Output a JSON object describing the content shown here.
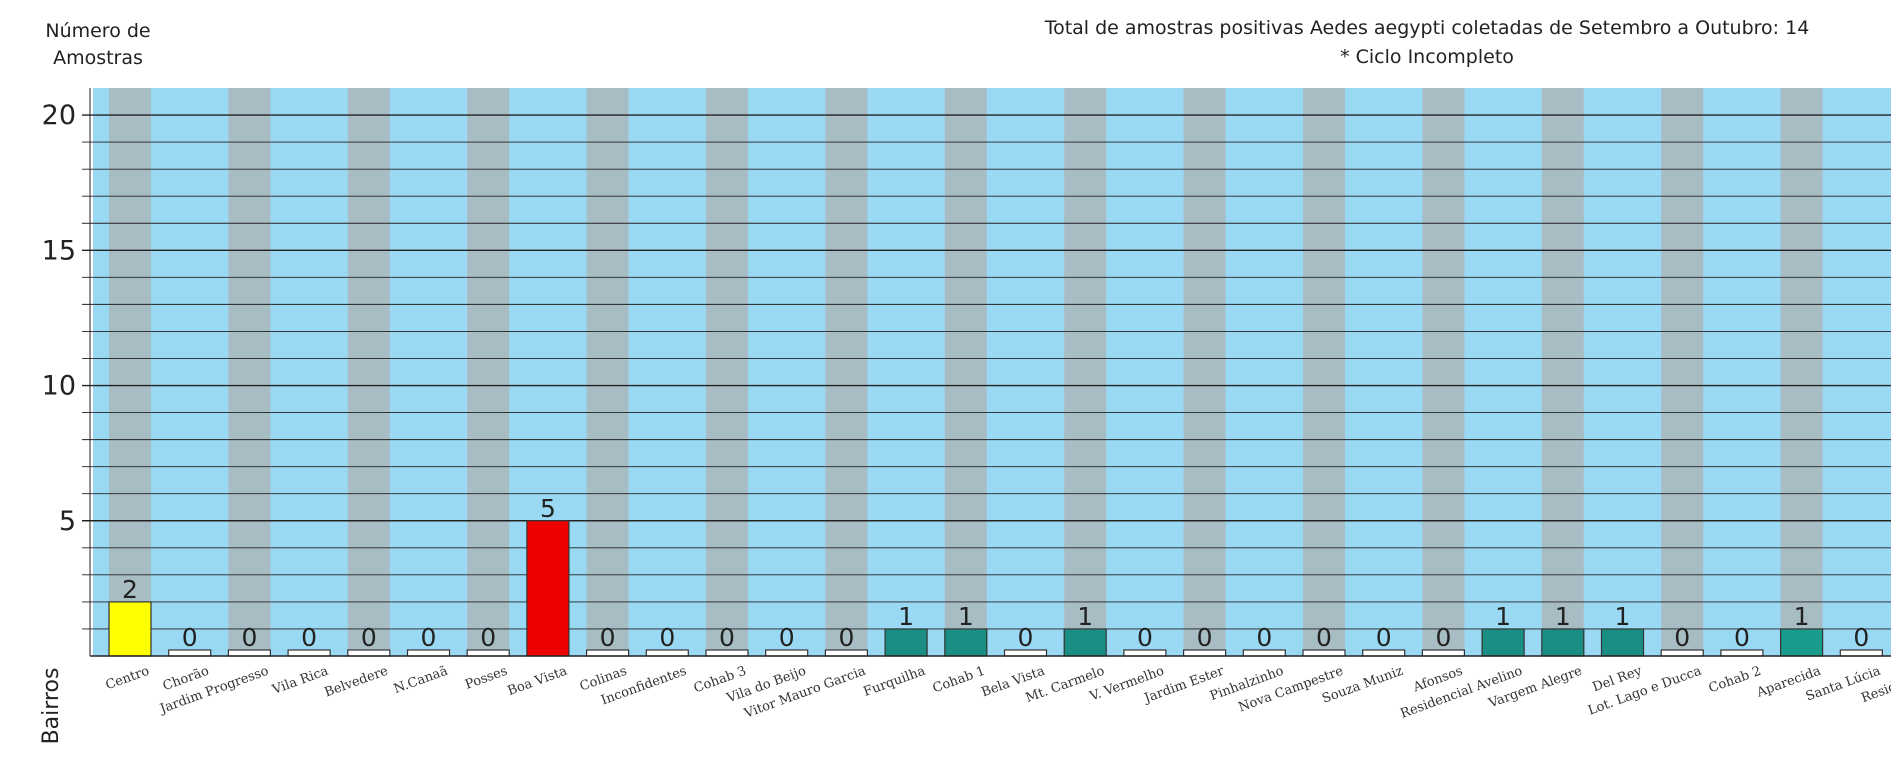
{
  "chart_data": {
    "type": "bar",
    "title": "Total de amostras positivas Aedes aegypti coletadas de Setembro a Outubro: 14",
    "subtitle": "* Ciclo Incompleto",
    "ylabel_line1": "Número de",
    "ylabel_line2": "Amostras",
    "xlabel": "Bairros",
    "ylim": [
      0,
      21
    ],
    "yticks": [
      5,
      10,
      15,
      20
    ],
    "categories": [
      "Centro",
      "Chorão",
      "Jardim Progresso",
      "Vila Rica",
      "Belvedere",
      "N.Canaã",
      "Posses",
      "Boa Vista",
      "Colinas",
      "Inconfidentes",
      "Cohab 3",
      "Vila do Beijo",
      "Vitor Mauro Garcia",
      "Furquilha",
      "Cohab 1",
      "Bela Vista",
      "Mt. Carmelo",
      "V. Vermelho",
      "Jardim Ester",
      "Pinhalzinho",
      "Nova Campestre",
      "Souza Muniz",
      "Afonsos",
      "Residencial Avelino",
      "Vargem Alegre",
      "Del Rey",
      "Lot. Lago e Ducca",
      "Cohab 2",
      "Aparecida",
      "Santa Lúcia",
      "Resid. Auror"
    ],
    "values": [
      2,
      0,
      0,
      0,
      0,
      0,
      0,
      5,
      0,
      0,
      0,
      0,
      0,
      1,
      1,
      0,
      1,
      0,
      0,
      0,
      0,
      0,
      0,
      1,
      1,
      1,
      0,
      0,
      1,
      0,
      0
    ],
    "bar_colors": [
      "#ffff00",
      "#ffffff",
      "#ffffff",
      "#ffffff",
      "#ffffff",
      "#ffffff",
      "#ffffff",
      "#ee0000",
      "#ffffff",
      "#ffffff",
      "#ffffff",
      "#ffffff",
      "#ffffff",
      "#1a8e82",
      "#1a8e82",
      "#ffffff",
      "#1a8e82",
      "#ffffff",
      "#ffffff",
      "#ffffff",
      "#ffffff",
      "#ffffff",
      "#ffffff",
      "#1a8e82",
      "#1a8e82",
      "#1a8e82",
      "#ffffff",
      "#ffffff",
      "#1a9c8c",
      "#ffffff",
      "#ffffff"
    ],
    "band_colors": {
      "light": "#9ad9f4",
      "gray": "#a8bcc4"
    },
    "grid": true
  }
}
